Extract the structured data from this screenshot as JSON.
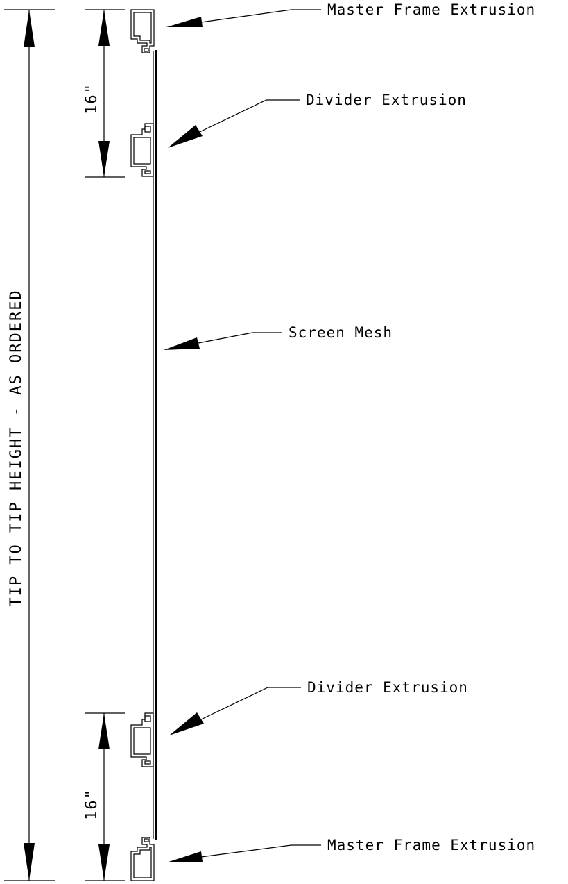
{
  "diagram": {
    "overall_dimension": "TIP TO TIP HEIGHT - AS ORDERED",
    "top_spacing": "16\"",
    "bottom_spacing": "16\"",
    "callouts": {
      "master_frame_top": "Master Frame Extrusion",
      "divider_top": "Divider Extrusion",
      "screen_mesh": "Screen Mesh",
      "divider_bottom": "Divider Extrusion",
      "master_frame_bottom": "Master Frame Extrusion"
    }
  }
}
